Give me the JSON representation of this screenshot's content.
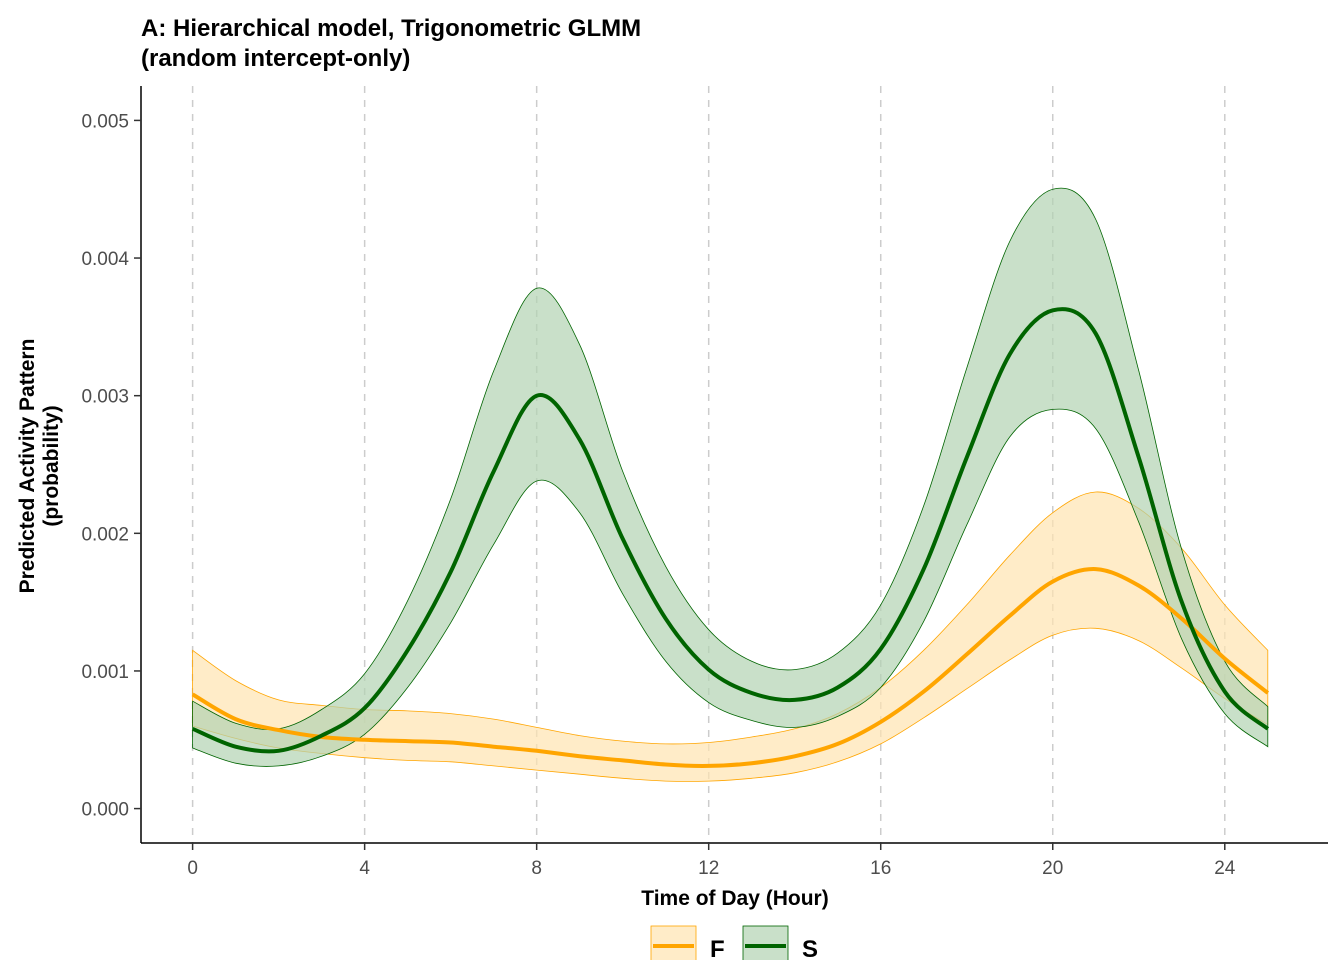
{
  "chart_data": {
    "type": "line",
    "title_line1": "A: Hierarchical model, Trigonometric GLMM",
    "title_line2": "(random intercept-only)",
    "xlabel": "Time of Day (Hour)",
    "ylabel_line1": "Predicted Activity Pattern",
    "ylabel_line2": "(probability)",
    "xlim": [
      -1.2,
      26.4
    ],
    "ylim": [
      -0.00025,
      0.00525
    ],
    "x_ticks": [
      0,
      4,
      8,
      12,
      16,
      20,
      24
    ],
    "x_tick_labels": [
      "0",
      "4",
      "8",
      "12",
      "16",
      "20",
      "24"
    ],
    "y_ticks": [
      0,
      0.001,
      0.002,
      0.003,
      0.004,
      0.005
    ],
    "y_tick_labels": [
      "0.000",
      "0.001",
      "0.002",
      "0.003",
      "0.004",
      "0.005"
    ],
    "vertical_gridlines": [
      0,
      4,
      8,
      12,
      16,
      20,
      24
    ],
    "grid": "vertical dashed at x ticks",
    "legend_position": "bottom",
    "x": [
      0,
      1,
      2,
      3,
      4,
      5,
      6,
      7,
      8,
      9,
      10,
      11,
      12,
      13,
      14,
      15,
      16,
      17,
      18,
      19,
      20,
      21,
      22,
      23,
      24,
      25
    ],
    "series": [
      {
        "name": "F",
        "color": "#ffa500",
        "fill": "#ffe4b0",
        "values": [
          0.00083,
          0.00065,
          0.00057,
          0.00052,
          0.0005,
          0.00049,
          0.00048,
          0.00045,
          0.00042,
          0.00038,
          0.00035,
          0.00032,
          0.00031,
          0.00033,
          0.00038,
          0.00047,
          0.00063,
          0.00085,
          0.00112,
          0.0014,
          0.00165,
          0.00174,
          0.00162,
          0.00138,
          0.00109,
          0.00084
        ],
        "lower": [
          0.0006,
          0.00051,
          0.00044,
          0.0004,
          0.00037,
          0.00035,
          0.00034,
          0.00031,
          0.00028,
          0.00025,
          0.00022,
          0.0002,
          0.0002,
          0.00022,
          0.00026,
          0.00034,
          0.00047,
          0.00066,
          0.00087,
          0.00108,
          0.00126,
          0.00131,
          0.00122,
          0.00102,
          0.0008,
          0.00061
        ],
        "upper": [
          0.00115,
          0.00093,
          0.00079,
          0.00075,
          0.00072,
          0.00071,
          0.00069,
          0.00065,
          0.00059,
          0.00053,
          0.00049,
          0.00047,
          0.00048,
          0.00052,
          0.00058,
          0.00069,
          0.00088,
          0.00115,
          0.00148,
          0.00184,
          0.00215,
          0.0023,
          0.00218,
          0.00189,
          0.00148,
          0.00115
        ]
      },
      {
        "name": "S",
        "color": "#006400",
        "fill": "#b2d3b2",
        "values": [
          0.00058,
          0.00045,
          0.00042,
          0.00053,
          0.00073,
          0.00115,
          0.00172,
          0.00245,
          0.003,
          0.00268,
          0.00196,
          0.00138,
          0.00101,
          0.00084,
          0.00079,
          0.00088,
          0.00116,
          0.00174,
          0.00255,
          0.0033,
          0.00362,
          0.00345,
          0.00255,
          0.0015,
          0.00085,
          0.00058
        ],
        "lower": [
          0.00044,
          0.00033,
          0.00031,
          0.00038,
          0.00054,
          0.00088,
          0.00135,
          0.00192,
          0.00238,
          0.00215,
          0.00156,
          0.00107,
          0.00077,
          0.00064,
          0.00059,
          0.00067,
          0.00088,
          0.00136,
          0.00206,
          0.0027,
          0.0029,
          0.00276,
          0.00208,
          0.00123,
          0.00069,
          0.00045
        ],
        "upper": [
          0.00078,
          0.00062,
          0.00058,
          0.00072,
          0.00098,
          0.00151,
          0.00225,
          0.00318,
          0.00378,
          0.00337,
          0.00245,
          0.00176,
          0.0013,
          0.00107,
          0.00101,
          0.00113,
          0.00148,
          0.0022,
          0.0032,
          0.00412,
          0.0045,
          0.00428,
          0.00318,
          0.00188,
          0.00107,
          0.00074
        ]
      }
    ]
  }
}
